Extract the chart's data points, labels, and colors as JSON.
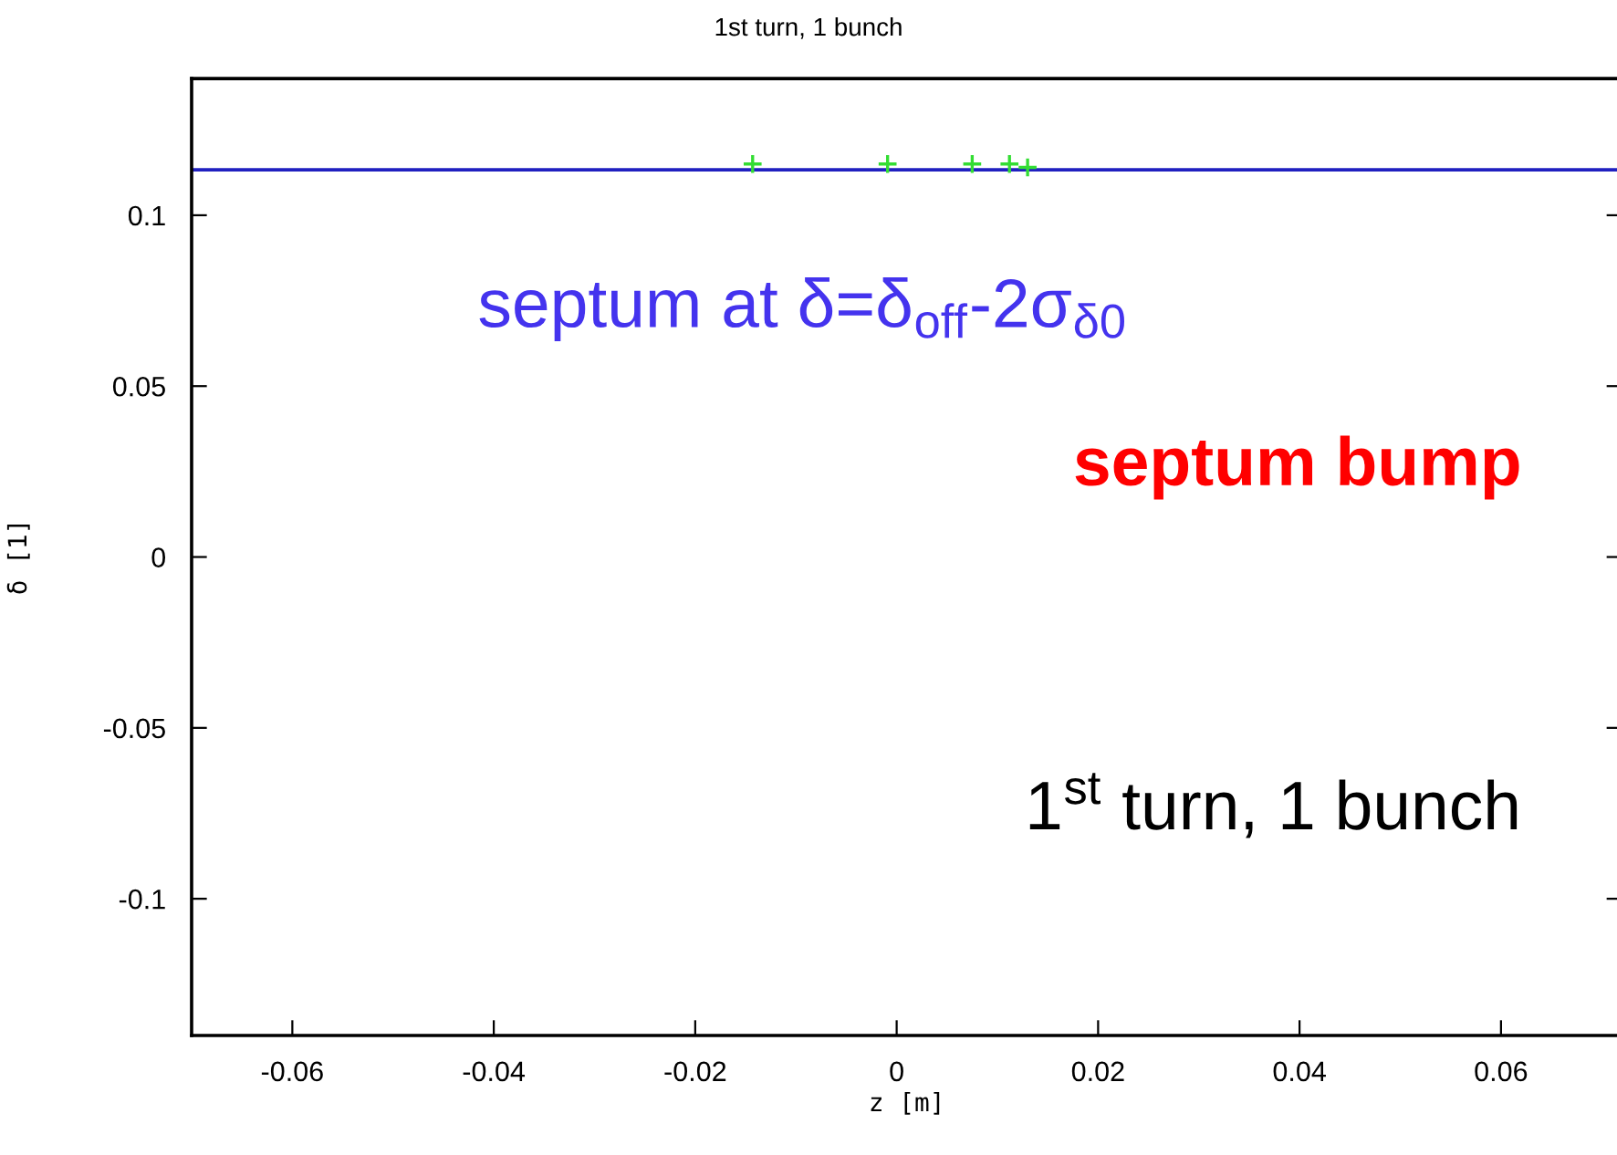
{
  "chart_data": {
    "type": "scatter",
    "title": "1st turn, 1 bunch",
    "xlabel": "z [m]",
    "ylabel": "δ [1]",
    "series": [
      {
        "color": "#33dd33",
        "x": [
          -0.0143,
          -0.0009,
          0.0075,
          0.0112,
          0.013
        ],
        "values": [
          0.115,
          0.115,
          0.115,
          0.115,
          0.114
        ]
      }
    ],
    "marker": "cross",
    "xlim": [
      -0.07,
      0.072
    ],
    "xticks": [
      -0.06,
      -0.04,
      -0.02,
      0,
      0.02,
      0.04,
      0.06
    ],
    "ylim": [
      -0.14,
      0.14
    ],
    "yticks": [
      -0.1,
      -0.05,
      0,
      0.05,
      0.1
    ],
    "ref_lines": [
      {
        "axis": "y",
        "value": 0.1133,
        "label": "septum at δ=δ$_{off}$-2σ$_{δ0}$",
        "color": "#2020c0"
      }
    ],
    "annotations": [
      "septum bump",
      "1$^{st}$ turn, 1 bunch"
    ],
    "grid": false,
    "legend": false
  }
}
